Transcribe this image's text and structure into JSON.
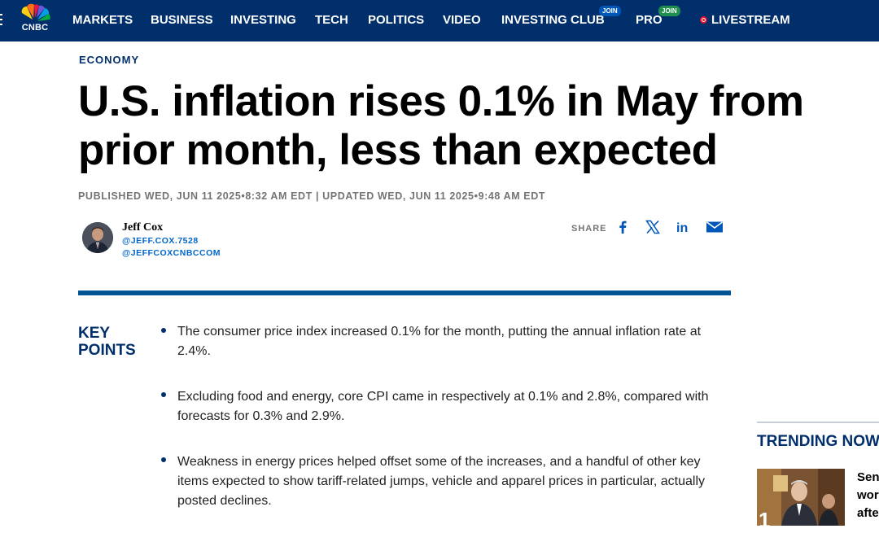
{
  "nav": {
    "logo_text": "CNBC",
    "items": [
      "MARKETS",
      "BUSINESS",
      "INVESTING",
      "TECH",
      "POLITICS",
      "VIDEO",
      "INVESTING CLUB",
      "PRO",
      "LIVESTREAM"
    ],
    "join_badge": "JOIN",
    "colors": {
      "background": "#002f6c",
      "join_blue": "#0057b8",
      "join_green": "#1e8f4e",
      "live_red": "#e8112d"
    }
  },
  "article": {
    "kicker": "ECONOMY",
    "headline": "U.S. inflation rises 0.1% in May from prior month, less than expected",
    "timestamp": "PUBLISHED WED, JUN 11 2025•8:32 AM EDT | UPDATED WED, JUN 11 2025•9:48 AM EDT",
    "author": {
      "name": "Jeff Cox",
      "handles": [
        "@JEFF.COX.7528",
        "@JEFFCOXCNBCCOM"
      ]
    },
    "share": {
      "label": "SHARE",
      "icons": [
        "facebook-icon",
        "x-icon",
        "linkedin-icon",
        "email-icon"
      ]
    },
    "key_points": {
      "title": "KEY POINTS",
      "items": [
        "The consumer price index increased 0.1% for the month, putting the annual inflation rate at 2.4%.",
        "Excluding food and energy, core CPI came in respectively at 0.1% and 2.8%, compared with forecasts for 0.3% and 2.9%.",
        "Weakness in energy prices helped offset some of the increases, and a handful of other key items expected to show tariff-related jumps, vehicle and apparel prices in particular, actually posted declines."
      ]
    }
  },
  "trending": {
    "title": "TRENDING NOW",
    "items": [
      {
        "rank": "1",
        "text_fragments": [
          "Sen",
          "wor",
          "afte"
        ]
      }
    ]
  },
  "colors": {
    "brand_navy": "#002f6c",
    "rule_blue": "#005594",
    "link_blue": "#0066cc",
    "meta_gray": "#747474"
  }
}
